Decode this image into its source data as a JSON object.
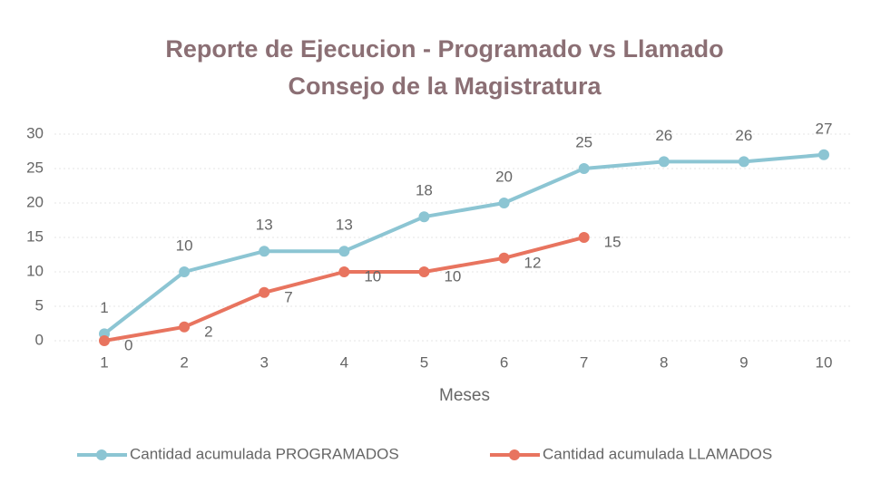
{
  "chart_data": {
    "type": "line",
    "title": "Reporte de Ejecucion - Programado vs Llamado",
    "subtitle": "Consejo de la Magistratura",
    "x_label": "Meses",
    "categories": [
      1,
      2,
      3,
      4,
      5,
      6,
      7,
      8,
      9,
      10
    ],
    "series": [
      {
        "name": "Cantidad acumulada PROGRAMADOS",
        "color": "#8cc5d3",
        "values": [
          1,
          10,
          13,
          13,
          18,
          20,
          25,
          26,
          26,
          27
        ]
      },
      {
        "name": "Cantidad acumulada LLAMADOS",
        "color": "#e8745f",
        "values": [
          0,
          2,
          7,
          10,
          10,
          12,
          15,
          null,
          null,
          null
        ]
      }
    ],
    "ylim": [
      0,
      30
    ],
    "yticks": [
      0,
      5,
      10,
      15,
      20,
      25,
      30
    ],
    "grid": true,
    "legend": "bottom"
  }
}
